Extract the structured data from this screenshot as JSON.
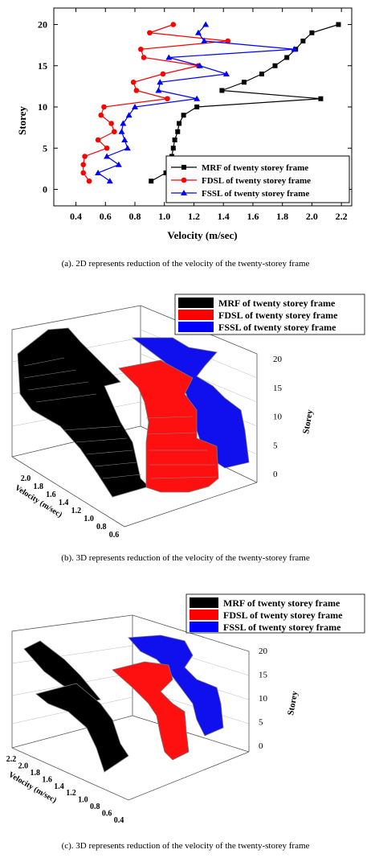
{
  "chart_data": [
    {
      "type": "line",
      "caption": "(a). 2D represents reduction of the velocity of the twenty-storey frame",
      "xlabel": "Velocity (m/sec)",
      "ylabel": "Storey",
      "xlim": [
        0.25,
        2.27
      ],
      "ylim": [
        -2,
        22
      ],
      "xticks": [
        "0.4",
        "0.6",
        "0.8",
        "1.0",
        "1.2",
        "1.4",
        "1.6",
        "1.8",
        "2.0",
        "2.2"
      ],
      "yticks": [
        "0",
        "5",
        "10",
        "15",
        "20"
      ],
      "legend_position": "bottom-right",
      "series": [
        {
          "name": "MRF of twenty storey frame",
          "color": "#000000",
          "marker": "square",
          "points": [
            [
              0.91,
              1
            ],
            [
              1.01,
              2
            ],
            [
              1.03,
              3
            ],
            [
              1.05,
              4
            ],
            [
              1.06,
              5
            ],
            [
              1.07,
              6
            ],
            [
              1.09,
              7
            ],
            [
              1.1,
              8
            ],
            [
              1.13,
              9
            ],
            [
              1.22,
              10
            ],
            [
              2.06,
              11
            ],
            [
              1.39,
              12
            ],
            [
              1.54,
              13
            ],
            [
              1.66,
              14
            ],
            [
              1.75,
              15
            ],
            [
              1.83,
              16
            ],
            [
              1.89,
              17
            ],
            [
              1.94,
              18
            ],
            [
              2.0,
              19
            ],
            [
              2.18,
              20
            ]
          ]
        },
        {
          "name": "FDSL of twenty storey frame",
          "color": "#ff0000",
          "marker": "circle",
          "points": [
            [
              0.49,
              1
            ],
            [
              0.45,
              2
            ],
            [
              0.45,
              3
            ],
            [
              0.46,
              4
            ],
            [
              0.61,
              5
            ],
            [
              0.55,
              6
            ],
            [
              0.66,
              7
            ],
            [
              0.64,
              8
            ],
            [
              0.57,
              9
            ],
            [
              0.59,
              10
            ],
            [
              1.02,
              11
            ],
            [
              0.81,
              12
            ],
            [
              0.79,
              13
            ],
            [
              0.99,
              14
            ],
            [
              1.23,
              15
            ],
            [
              0.86,
              16
            ],
            [
              0.84,
              17
            ],
            [
              1.43,
              18
            ],
            [
              0.9,
              19
            ],
            [
              1.06,
              20
            ]
          ]
        },
        {
          "name": "FSSL of twenty storey frame",
          "color": "#0000ff",
          "marker": "triangle",
          "points": [
            [
              0.63,
              1
            ],
            [
              0.55,
              2
            ],
            [
              0.69,
              3
            ],
            [
              0.61,
              4
            ],
            [
              0.75,
              5
            ],
            [
              0.73,
              6
            ],
            [
              0.71,
              7
            ],
            [
              0.72,
              8
            ],
            [
              0.76,
              9
            ],
            [
              0.8,
              10
            ],
            [
              1.22,
              11
            ],
            [
              0.96,
              12
            ],
            [
              0.97,
              13
            ],
            [
              1.42,
              14
            ],
            [
              1.24,
              15
            ],
            [
              1.03,
              16
            ],
            [
              1.88,
              17
            ],
            [
              1.27,
              18
            ],
            [
              1.23,
              19
            ],
            [
              1.28,
              20
            ]
          ]
        }
      ]
    },
    {
      "type": "area",
      "caption": "(b). 3D represents reduction of the velocity of the twenty-storey frame",
      "xlabel": "Velocity (m/sec)",
      "zlabel": "Storey",
      "xticks": [
        "0.6",
        "0.8",
        "1.0",
        "1.2",
        "1.4",
        "1.6",
        "1.8",
        "2.0"
      ],
      "zticks": [
        "0",
        "5",
        "10",
        "15",
        "20"
      ],
      "legend_position": "top-right",
      "series": [
        {
          "name": "MRF of twenty storey frame",
          "color": "#000000"
        },
        {
          "name": "FDSL of twenty storey frame",
          "color": "#ff0000"
        },
        {
          "name": "FSSL of twenty storey frame",
          "color": "#0000ff"
        }
      ]
    },
    {
      "type": "area",
      "caption": "(c). 3D represents reduction of the velocity of the twenty-storey frame",
      "xlabel": "Velocity (m/sec)",
      "zlabel": "Storey",
      "xticks": [
        "0.4",
        "0.6",
        "0.8",
        "1.0",
        "1.2",
        "1.4",
        "1.6",
        "1.8",
        "2.0",
        "2.2"
      ],
      "zticks": [
        "0",
        "5",
        "10",
        "15",
        "20"
      ],
      "legend_position": "top-right",
      "series": [
        {
          "name": "MRF of twenty storey frame",
          "color": "#000000"
        },
        {
          "name": "FDSL of twenty storey frame",
          "color": "#ff0000"
        },
        {
          "name": "FSSL of twenty storey frame",
          "color": "#0000ff"
        }
      ]
    }
  ]
}
